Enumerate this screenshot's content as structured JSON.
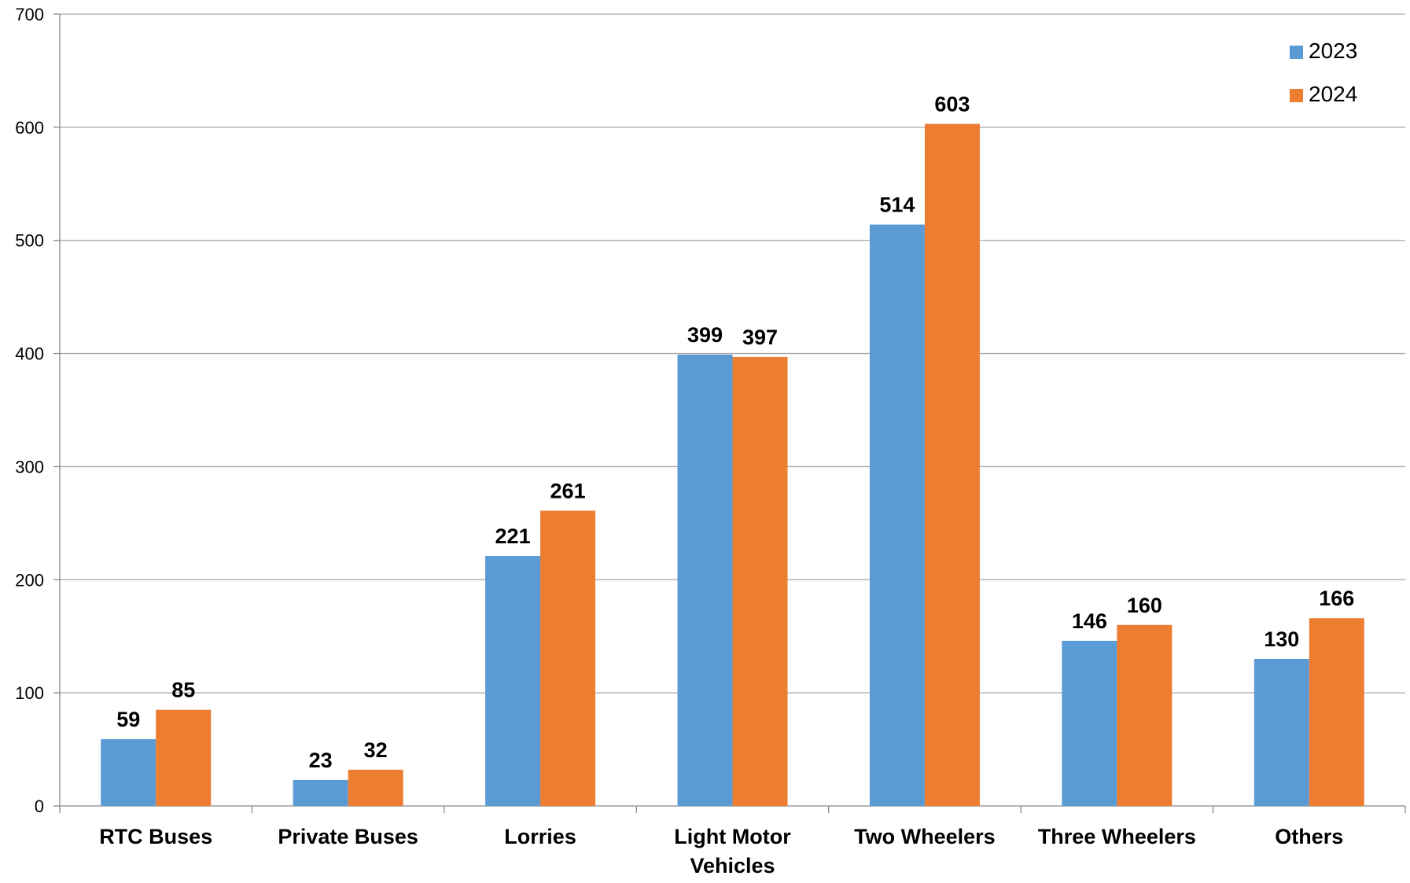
{
  "chart_data": {
    "type": "bar",
    "title": "",
    "xlabel": "",
    "ylabel": "",
    "categories": [
      [
        "RTC Buses"
      ],
      [
        "Private Buses"
      ],
      [
        "Lorries"
      ],
      [
        "Light Motor",
        "Vehicles"
      ],
      [
        "Two Wheelers"
      ],
      [
        "Three Wheelers"
      ],
      [
        "Others"
      ]
    ],
    "series": [
      {
        "name": "2023",
        "color": "#5B9BD5",
        "values": [
          59,
          23,
          221,
          399,
          514,
          146,
          130
        ]
      },
      {
        "name": "2024",
        "color": "#ED7D31",
        "values": [
          85,
          32,
          261,
          397,
          603,
          160,
          166
        ]
      }
    ],
    "ylim": [
      0,
      700
    ],
    "yticks": [
      0,
      100,
      200,
      300,
      400,
      500,
      600,
      700
    ],
    "grid": true,
    "legend_position": "top-right",
    "data_labels": true
  }
}
